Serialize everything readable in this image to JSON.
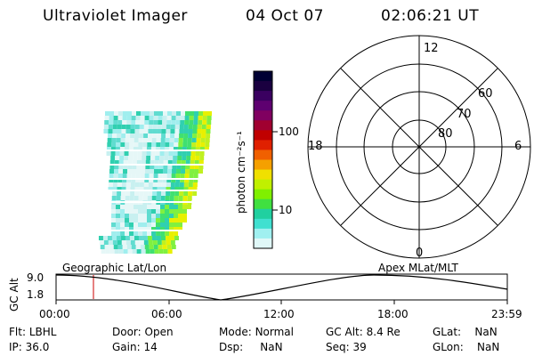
{
  "header": {
    "instrument": "Ultraviolet Imager",
    "date": "04 Oct 07",
    "time": "02:06:21 UT"
  },
  "colorbar": {
    "unit_label": "photon cm⁻²s⁻¹",
    "ticks": [
      "100",
      "10"
    ],
    "colors": [
      "#000033",
      "#1a0040",
      "#3a0060",
      "#5e0070",
      "#800060",
      "#a00030",
      "#c00000",
      "#e02000",
      "#f06000",
      "#f5a000",
      "#f0e000",
      "#c0f000",
      "#80f000",
      "#40e040",
      "#20d0a0",
      "#40e0d0",
      "#a0f0f0",
      "#e0f8f8"
    ]
  },
  "polar_plot": {
    "mlt_labels": [
      "12",
      "18",
      "6",
      "0"
    ],
    "lat_labels": [
      "60",
      "70",
      "80"
    ]
  },
  "orbit_plot": {
    "left_label": "Geographic Lat/Lon",
    "right_label": "Apex MLat/MLT",
    "y_axis_label": "GC Alt",
    "y_ticks": [
      "9.0",
      "1.8"
    ],
    "x_ticks": [
      "00:00",
      "06:00",
      "12:00",
      "18:00",
      "23:59"
    ],
    "marker_color": "#cc0000"
  },
  "status": {
    "row1": [
      {
        "label": "Flt:",
        "value": "LBHL"
      },
      {
        "label": "Door:",
        "value": "Open"
      },
      {
        "label": "Mode:",
        "value": "Normal"
      },
      {
        "label": "GC Alt:",
        "value": "8.4 Re"
      },
      {
        "label": "GLat:",
        "value": "NaN"
      }
    ],
    "row2": [
      {
        "label": "IP:",
        "value": "36.0"
      },
      {
        "label": "Gain:",
        "value": "14"
      },
      {
        "label": "Dsp:",
        "value": "NaN"
      },
      {
        "label": "Seq:",
        "value": "39"
      },
      {
        "label": "GLon:",
        "value": "NaN"
      }
    ]
  }
}
